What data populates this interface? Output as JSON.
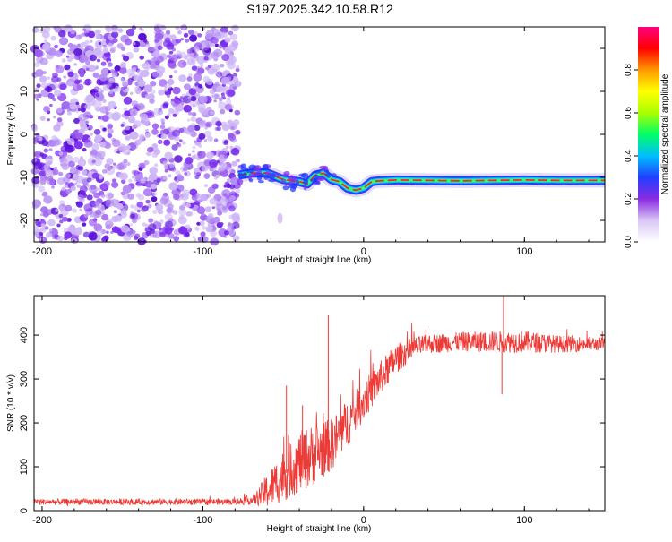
{
  "title": "S197.2025.342.10.58.R12",
  "colors": {
    "axis": "#000000",
    "spectrum_speckle": "#7a2cf0",
    "spectrum_speckle_light": "#cdb5f7",
    "snr_line": "#ee3a36"
  },
  "chart_data": [
    {
      "id": "spectrogram",
      "type": "heatmap",
      "xlabel": "Height of straight line (km)",
      "ylabel": "Frequency (Hz)",
      "xlim": [
        -205,
        150
      ],
      "ylim": [
        -25,
        25
      ],
      "xticks": [
        -200,
        -100,
        0,
        100
      ],
      "yticks": [
        -20,
        -10,
        0,
        10,
        20
      ],
      "noise_region_x": [
        -205,
        -78
      ],
      "ridge": {
        "x": [
          -78,
          -70,
          -60,
          -50,
          -40,
          -35,
          -30,
          -25,
          -20,
          -15,
          -10,
          -5,
          0,
          5,
          10,
          20,
          40,
          60,
          80,
          100,
          120,
          150
        ],
        "freq": [
          -9.5,
          -9.0,
          -9.0,
          -10.5,
          -11.0,
          -11.5,
          -9.5,
          -9.0,
          -10.5,
          -11.0,
          -12.5,
          -13.0,
          -12.5,
          -11.0,
          -10.8,
          -10.6,
          -10.7,
          -10.8,
          -10.7,
          -10.6,
          -10.7,
          -10.7
        ]
      },
      "colorbar": {
        "label": "Normalized spectral amplitude",
        "ticks": [
          0.0,
          0.2,
          0.4,
          0.6,
          0.8
        ],
        "range": [
          0,
          1
        ],
        "stops": [
          "#ffffff",
          "#d9c6f5",
          "#8a2be2",
          "#2040ff",
          "#00bfff",
          "#00ff66",
          "#aaff00",
          "#ffff00",
          "#ff9900",
          "#ff0000",
          "#ff0080"
        ]
      }
    },
    {
      "id": "snr",
      "type": "line",
      "xlabel": "Height of straight line (km)",
      "ylabel": "SNR (10 * v/v)",
      "xlim": [
        -205,
        150
      ],
      "ylim": [
        0,
        490
      ],
      "xticks": [
        -200,
        -100,
        0,
        100
      ],
      "yticks": [
        0,
        100,
        200,
        300,
        400
      ],
      "envelope": {
        "x": [
          -205,
          -80,
          -68,
          -60,
          -50,
          -40,
          -30,
          -20,
          -10,
          0,
          10,
          20,
          30,
          40,
          60,
          80,
          100,
          120,
          150
        ],
        "mean": [
          20,
          20,
          25,
          45,
          80,
          110,
          130,
          150,
          200,
          250,
          300,
          345,
          370,
          380,
          385,
          385,
          385,
          380,
          380
        ],
        "noise": [
          7,
          7,
          12,
          40,
          60,
          70,
          70,
          60,
          55,
          45,
          40,
          35,
          25,
          22,
          22,
          25,
          25,
          20,
          15
        ]
      },
      "spikes": [
        {
          "x": -48,
          "y": 285
        },
        {
          "x": -38,
          "y": 240
        },
        {
          "x": -22,
          "y": 445
        },
        {
          "x": 87,
          "y": 490
        },
        {
          "x": 86,
          "y": 265
        }
      ]
    }
  ]
}
